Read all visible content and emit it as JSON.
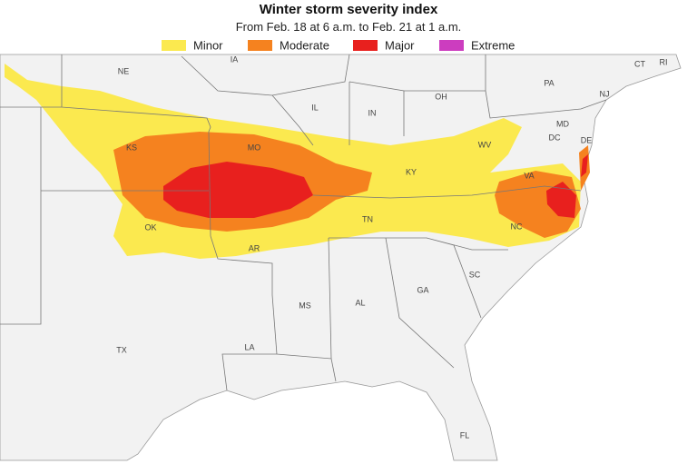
{
  "header": {
    "title": "Winter storm severity index",
    "subtitle": "From Feb. 18 at 6 a.m. to Feb. 21 at 1 a.m."
  },
  "legend": [
    {
      "label": "Minor",
      "color": "#fbe94f"
    },
    {
      "label": "Moderate",
      "color": "#f5821f"
    },
    {
      "label": "Major",
      "color": "#e8201e"
    },
    {
      "label": "Extreme",
      "color": "#cc3dbf"
    }
  ],
  "state_labels": [
    "NE",
    "IA",
    "IL",
    "IN",
    "OH",
    "PA",
    "CT",
    "RI",
    "NJ",
    "MD",
    "DC",
    "DE",
    "WV",
    "KS",
    "MO",
    "KY",
    "VA",
    "OK",
    "TN",
    "NC",
    "AR",
    "SC",
    "MS",
    "AL",
    "GA",
    "LA",
    "TX",
    "FL"
  ]
}
